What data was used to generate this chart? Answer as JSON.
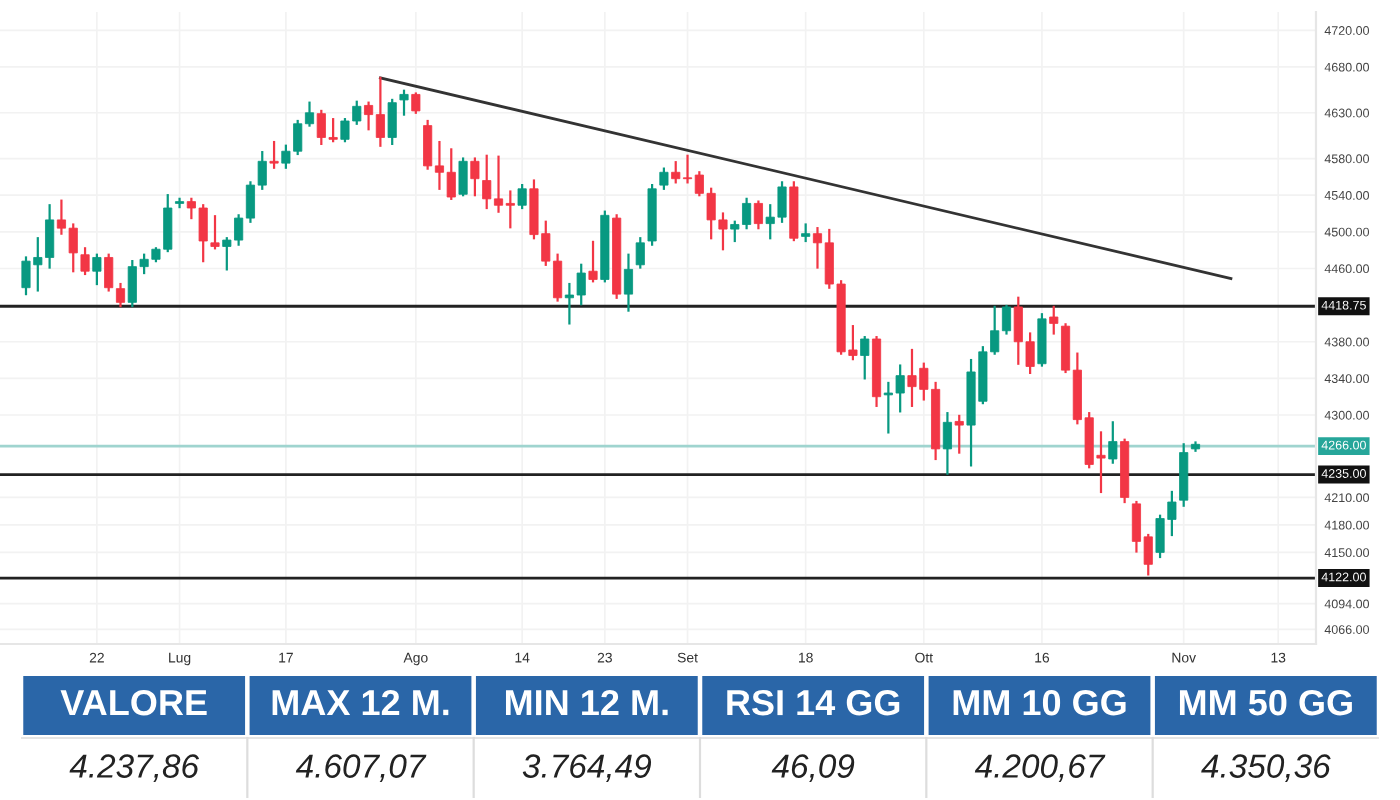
{
  "chart_data": [
    {
      "type": "candlestick",
      "categories": [
        null,
        null,
        null,
        null,
        null,
        null,
        "22",
        null,
        null,
        null,
        null,
        null,
        null,
        "Lug",
        null,
        null,
        null,
        null,
        null,
        null,
        null,
        null,
        "17",
        null,
        null,
        null,
        null,
        null,
        null,
        null,
        null,
        null,
        null,
        "Ago",
        null,
        null,
        null,
        null,
        null,
        null,
        null,
        null,
        "14",
        null,
        null,
        null,
        null,
        null,
        null,
        "23",
        null,
        null,
        null,
        null,
        null,
        null,
        "Set",
        null,
        null,
        null,
        null,
        null,
        null,
        null,
        null,
        null,
        "18",
        null,
        null,
        null,
        null,
        null,
        null,
        null,
        null,
        null,
        "Ott",
        null,
        null,
        null,
        null,
        null,
        null,
        null,
        null,
        null,
        "16",
        null,
        null,
        null,
        null,
        null,
        null,
        null,
        null,
        null,
        null,
        null,
        "Nov",
        null,
        null,
        null,
        null,
        null,
        null,
        null,
        "13"
      ],
      "ohlc": [
        [
          4439,
          4472,
          4432,
          4468
        ],
        [
          4464,
          4493,
          4436,
          4472
        ],
        [
          4472,
          4529,
          4461,
          4513
        ],
        [
          4513,
          4534,
          4498,
          4504
        ],
        [
          4504,
          4508,
          4457,
          4477
        ],
        [
          4475,
          4482,
          4454,
          4457
        ],
        [
          4457,
          4475,
          4443,
          4472
        ],
        [
          4472,
          4475,
          4436,
          4439
        ],
        [
          4438,
          4443,
          4419,
          4423
        ],
        [
          4423,
          4468,
          4419,
          4462
        ],
        [
          4462,
          4475,
          4455,
          4470
        ],
        [
          4470,
          4482,
          4468,
          4481
        ],
        [
          4481,
          4540,
          4479,
          4526
        ],
        [
          4531,
          4536,
          4527,
          4533
        ],
        [
          4533,
          4536,
          4515,
          4526
        ],
        [
          4526,
          4529,
          4468,
          4490
        ],
        [
          4488,
          4517,
          4482,
          4484
        ],
        [
          4484,
          4493,
          4459,
          4491
        ],
        [
          4491,
          4518,
          4486,
          4515
        ],
        [
          4515,
          4554,
          4511,
          4551
        ],
        [
          4551,
          4587,
          4547,
          4577
        ],
        [
          4577,
          4598,
          4570,
          4575
        ],
        [
          4575,
          4594,
          4570,
          4588
        ],
        [
          4588,
          4621,
          4585,
          4618
        ],
        [
          4618,
          4641,
          4616,
          4630
        ],
        [
          4629,
          4632,
          4596,
          4603
        ],
        [
          4603,
          4623,
          4599,
          4601
        ],
        [
          4601,
          4623,
          4599,
          4621
        ],
        [
          4621,
          4642,
          4618,
          4637
        ],
        [
          4638,
          4641,
          4612,
          4628
        ],
        [
          4628,
          4668,
          4594,
          4603
        ],
        [
          4603,
          4644,
          4596,
          4641
        ],
        [
          4644,
          4654,
          4628,
          4650
        ],
        [
          4650,
          4651,
          4630,
          4632
        ],
        [
          4616,
          4621,
          4569,
          4572
        ],
        [
          4572,
          4598,
          4547,
          4565
        ],
        [
          4565,
          4590,
          4536,
          4538
        ],
        [
          4541,
          4580,
          4540,
          4577
        ],
        [
          4577,
          4580,
          4540,
          4558
        ],
        [
          4556,
          4583,
          4526,
          4536
        ],
        [
          4536,
          4582,
          4522,
          4529
        ],
        [
          4531,
          4544,
          4505,
          4529
        ],
        [
          4529,
          4551,
          4526,
          4547
        ],
        [
          4547,
          4556,
          4493,
          4497
        ],
        [
          4498,
          4511,
          4464,
          4468
        ],
        [
          4468,
          4475,
          4425,
          4428
        ],
        [
          4428,
          4443,
          4400,
          4431
        ],
        [
          4431,
          4464,
          4421,
          4455
        ],
        [
          4457,
          4489,
          4446,
          4448
        ],
        [
          4448,
          4522,
          4446,
          4518
        ],
        [
          4515,
          4518,
          4428,
          4432
        ],
        [
          4432,
          4475,
          4414,
          4459
        ],
        [
          4464,
          4493,
          4461,
          4488
        ],
        [
          4490,
          4551,
          4486,
          4547
        ],
        [
          4551,
          4569,
          4547,
          4565
        ],
        [
          4565,
          4576,
          4554,
          4558
        ],
        [
          4559,
          4583,
          4554,
          4558
        ],
        [
          4562,
          4565,
          4540,
          4542
        ],
        [
          4542,
          4547,
          4493,
          4513
        ],
        [
          4513,
          4520,
          4481,
          4503
        ],
        [
          4503,
          4511,
          4490,
          4508
        ],
        [
          4508,
          4536,
          4504,
          4531
        ],
        [
          4531,
          4533,
          4504,
          4509
        ],
        [
          4509,
          4529,
          4493,
          4516
        ],
        [
          4516,
          4554,
          4511,
          4549
        ],
        [
          4549,
          4554,
          4491,
          4493
        ],
        [
          4495,
          4508,
          4490,
          4498
        ],
        [
          4498,
          4504,
          4461,
          4488
        ],
        [
          4488,
          4502,
          4439,
          4443
        ],
        [
          4443,
          4446,
          4367,
          4369
        ],
        [
          4371,
          4397,
          4361,
          4365
        ],
        [
          4365,
          4385,
          4340,
          4383
        ],
        [
          4383,
          4385,
          4310,
          4320
        ],
        [
          4322,
          4335,
          4281,
          4324
        ],
        [
          4324,
          4354,
          4304,
          4343
        ],
        [
          4343,
          4371,
          4310,
          4331
        ],
        [
          4351,
          4356,
          4317,
          4328
        ],
        [
          4328,
          4335,
          4252,
          4263
        ],
        [
          4263,
          4302,
          4236,
          4292
        ],
        [
          4293,
          4299,
          4259,
          4289
        ],
        [
          4289,
          4360,
          4245,
          4347
        ],
        [
          4315,
          4374,
          4313,
          4369
        ],
        [
          4369,
          4418,
          4367,
          4392
        ],
        [
          4392,
          4419,
          4389,
          4418
        ],
        [
          4418,
          4428,
          4356,
          4380
        ],
        [
          4380,
          4389,
          4346,
          4353
        ],
        [
          4356,
          4410,
          4354,
          4405
        ],
        [
          4407,
          4418,
          4389,
          4400
        ],
        [
          4397,
          4399,
          4347,
          4349
        ],
        [
          4349,
          4367,
          4291,
          4295
        ],
        [
          4297,
          4302,
          4243,
          4246
        ],
        [
          4256,
          4281,
          4216,
          4253
        ],
        [
          4252,
          4292,
          4248,
          4271
        ],
        [
          4271,
          4273,
          4205,
          4210
        ],
        [
          4203,
          4205,
          4151,
          4162
        ],
        [
          4167,
          4169,
          4126,
          4137
        ],
        [
          4150,
          4190,
          4145,
          4187
        ],
        [
          4186,
          4216,
          4169,
          4205
        ],
        [
          4207,
          4268,
          4201,
          4259
        ],
        [
          4263,
          4270,
          4261,
          4268
        ],
        null,
        null,
        null,
        null,
        null,
        null,
        null
      ],
      "series": [
        {
          "type": "line",
          "color": "#333333",
          "values": [
            null,
            null,
            null,
            null,
            null,
            null,
            null,
            null,
            null,
            null,
            null,
            null,
            null,
            null,
            null,
            null,
            null,
            null,
            null,
            null,
            null,
            null,
            null,
            null,
            null,
            null,
            null,
            null,
            null,
            null,
            4668,
            null,
            null,
            null,
            null,
            null,
            null,
            null,
            null,
            null,
            null,
            null,
            null,
            null,
            null,
            null,
            null,
            null,
            null,
            null,
            null,
            null,
            null,
            null,
            null,
            null,
            null,
            null,
            null,
            null,
            null,
            null,
            null,
            null,
            null,
            null,
            null,
            null,
            null,
            null,
            null,
            null,
            null,
            null,
            null,
            null,
            null,
            null,
            null,
            null,
            null,
            null,
            null,
            null,
            null,
            null,
            null,
            null,
            null,
            null,
            null,
            null,
            null,
            null,
            null,
            null,
            null,
            null,
            null,
            null,
            null,
            null,
            4449,
            null,
            null,
            null,
            null
          ]
        }
      ],
      "ylim": [
        4050,
        4740
      ],
      "yticks": [
        {
          "value": 4066,
          "label": "4066.00"
        },
        {
          "value": 4094,
          "label": "4094.00"
        },
        {
          "value": 4150,
          "label": "4150.00"
        },
        {
          "value": 4180,
          "label": "4180.00"
        },
        {
          "value": 4210,
          "label": "4210.00"
        },
        {
          "value": 4300,
          "label": "4300.00"
        },
        {
          "value": 4340,
          "label": "4340.00"
        },
        {
          "value": 4380,
          "label": "4380.00"
        },
        {
          "value": 4460,
          "label": "4460.00"
        },
        {
          "value": 4500,
          "label": "4500.00"
        },
        {
          "value": 4540,
          "label": "4540.00"
        },
        {
          "value": 4580,
          "label": "4580.00"
        },
        {
          "value": 4630,
          "label": "4630.00"
        },
        {
          "value": 4680,
          "label": "4680.00"
        },
        {
          "value": 4720,
          "label": "4720.00"
        }
      ],
      "ref_lines": [
        {
          "axis": "y",
          "value": 4418.75,
          "label": "4418.75",
          "color": "#222222"
        },
        {
          "axis": "y",
          "value": 4266,
          "label": "4266.00",
          "color": "#9fd4cf"
        },
        {
          "axis": "y",
          "value": 4235,
          "label": "4235.00",
          "color": "#222222"
        },
        {
          "axis": "y",
          "value": 4122,
          "label": "4122.00",
          "color": "#222222"
        }
      ],
      "grid": true
    },
    {
      "type": "other",
      "categories": [
        "VALORE",
        "MAX 12 M.",
        "MIN 12 M.",
        "RSI 14 GG",
        "MM 10 GG",
        "MM 50 GG"
      ],
      "value_labels": [
        "4.237,86",
        "4.607,07",
        "3.764,49",
        "46,09",
        "4.200,67",
        "4.350,36"
      ]
    }
  ]
}
